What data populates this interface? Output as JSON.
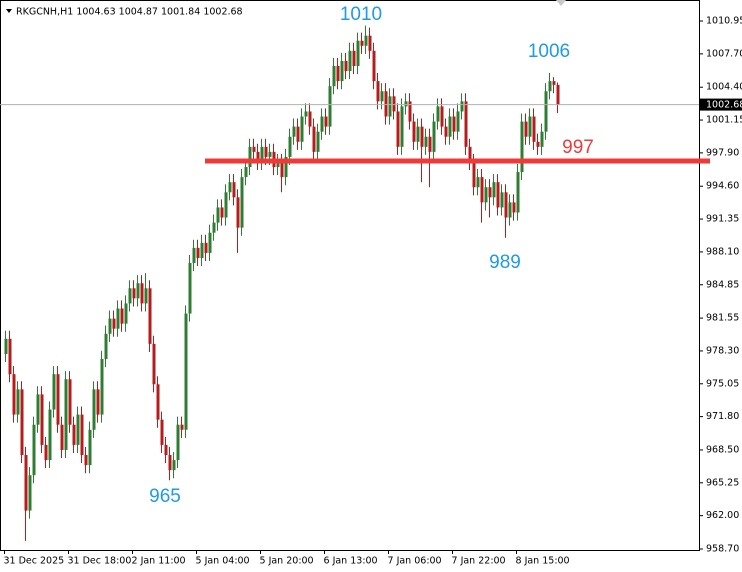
{
  "chart_data": {
    "type": "candlestick",
    "symbol": "RKGCNH,H1",
    "up_color": "#2e7d32",
    "down_color": "#b71c1c",
    "ylim": [
      958.6,
      1013.03
    ],
    "yticks": [
      1010.95,
      {
        "value": 1007.7,
        "label": "1007.70"
      },
      {
        "value": 1004.4,
        "label": "1004.40"
      },
      1001.15,
      {
        "value": 997.9,
        "label": "997.90"
      },
      {
        "value": 994.6,
        "label": "994.60"
      },
      991.35,
      {
        "value": 988.1,
        "label": "988.10"
      },
      984.85,
      981.55,
      {
        "value": 978.3,
        "label": "978.30"
      },
      975.05,
      {
        "value": 971.8,
        "label": "971.80"
      },
      {
        "value": 968.5,
        "label": "968.50"
      },
      965.25,
      {
        "value": 962.0,
        "label": "962.00"
      },
      {
        "value": 958.7,
        "label": "958.70"
      }
    ],
    "categories": [
      "31 Dec 2025",
      null,
      null,
      null,
      null,
      null,
      null,
      null,
      null,
      null,
      null,
      null,
      null,
      null,
      null,
      null,
      "31 Dec 18:00",
      null,
      null,
      null,
      null,
      null,
      null,
      null,
      null,
      null,
      null,
      null,
      null,
      null,
      null,
      null,
      "2 Jan 11:00",
      null,
      null,
      null,
      null,
      null,
      null,
      null,
      null,
      null,
      null,
      null,
      null,
      null,
      null,
      null,
      "5 Jan 04:00",
      null,
      null,
      null,
      null,
      null,
      null,
      null,
      null,
      null,
      null,
      null,
      null,
      null,
      null,
      null,
      "5 Jan 20:00",
      null,
      null,
      null,
      null,
      null,
      null,
      null,
      null,
      null,
      null,
      null,
      null,
      null,
      null,
      null,
      "6 Jan 13:00",
      null,
      null,
      null,
      null,
      null,
      null,
      null,
      null,
      null,
      null,
      null,
      null,
      null,
      null,
      null,
      "7 Jan 06:00",
      null,
      null,
      null,
      null,
      null,
      null,
      null,
      null,
      null,
      null,
      null,
      null,
      null,
      null,
      null,
      "7 Jan 22:00",
      null,
      null,
      null,
      null,
      null,
      null,
      null,
      null,
      null,
      null,
      null,
      null,
      null,
      null,
      null,
      "8 Jan 15:00",
      null,
      null,
      null,
      null,
      null,
      null,
      null,
      null,
      null,
      null
    ],
    "open": [
      978.0,
      979.5,
      976.0,
      972.0,
      974.5,
      968.0,
      962.5,
      966.0,
      971.0,
      974.0,
      969.0,
      967.5,
      972.5,
      976.0,
      971.0,
      968.5,
      975.5,
      971.0,
      969.0,
      972.0,
      968.0,
      967.0,
      970.5,
      974.5,
      972.0,
      977.5,
      980.0,
      981.5,
      980.5,
      982.5,
      981.0,
      983.0,
      984.5,
      983.5,
      985.0,
      983.0,
      984.5,
      979.0,
      975.0,
      971.5,
      969.0,
      968.0,
      966.5,
      967.5,
      971.0,
      970.5,
      982.0,
      987.0,
      988.5,
      987.5,
      989.0,
      988.0,
      990.0,
      991.0,
      992.5,
      991.5,
      994.0,
      995.0,
      993.5,
      990.5,
      995.5,
      996.5,
      998.5,
      998.0,
      997.0,
      998.5,
      997.5,
      998.0,
      996.5,
      997.0,
      995.5,
      997.5,
      999.5,
      1000.5,
      999.0,
      1001.5,
      1002.0,
      1000.5,
      998.0,
      1000.0,
      1001.5,
      1000.5,
      1004.5,
      1006.5,
      1005.0,
      1007.0,
      1006.0,
      1008.0,
      1006.5,
      1009.0,
      1008.5,
      1009.5,
      1008.0,
      1005.0,
      1003.0,
      1004.0,
      1001.5,
      1003.5,
      1002.0,
      998.5,
      1002.5,
      1003.0,
      1001.0,
      999.0,
      1000.5,
      998.5,
      999.5,
      998.0,
      1001.0,
      1002.5,
      1000.5,
      999.5,
      1001.5,
      1000.0,
      1002.0,
      1003.0,
      998.5,
      997.0,
      994.5,
      995.5,
      993.0,
      994.5,
      993.5,
      995.0,
      992.5,
      994.0,
      991.5,
      993.0,
      992.0,
      996.0,
      1001.0,
      999.5,
      1001.5,
      999.0,
      998.5,
      1000.0,
      1004.0,
      1005.0,
      1004.63
    ],
    "high": [
      980.3,
      980.3,
      976.8,
      975.3,
      975.3,
      968.8,
      966.8,
      971.8,
      974.8,
      974.8,
      969.8,
      973.3,
      976.8,
      976.8,
      971.8,
      976.3,
      976.3,
      971.8,
      972.8,
      972.8,
      968.8,
      971.3,
      975.3,
      975.3,
      978.3,
      980.8,
      982.3,
      982.3,
      983.3,
      983.3,
      983.8,
      985.3,
      985.3,
      985.8,
      985.8,
      986.0,
      985.3,
      979.8,
      975.8,
      972.3,
      969.8,
      968.8,
      968.3,
      971.8,
      971.8,
      982.8,
      987.8,
      989.3,
      989.3,
      989.8,
      989.8,
      990.8,
      991.8,
      993.3,
      993.3,
      994.8,
      995.8,
      995.8,
      994.3,
      996.3,
      997.3,
      999.3,
      999.3,
      998.8,
      999.3,
      999.3,
      998.8,
      998.8,
      997.8,
      997.8,
      998.3,
      1000.3,
      1001.3,
      1001.3,
      1002.3,
      1002.8,
      1002.8,
      1001.3,
      1000.8,
      1002.3,
      1002.3,
      1005.3,
      1007.3,
      1007.3,
      1007.8,
      1007.8,
      1008.8,
      1008.8,
      1009.8,
      1009.8,
      1010.5,
      1010.3,
      1008.8,
      1005.8,
      1004.8,
      1004.8,
      1004.3,
      1004.3,
      1002.8,
      1003.3,
      1003.8,
      1003.8,
      1001.8,
      1001.3,
      1001.3,
      1000.3,
      1000.3,
      1001.8,
      1003.3,
      1003.3,
      1001.3,
      1002.3,
      1002.3,
      1002.8,
      1003.8,
      1003.8,
      999.3,
      997.8,
      996.3,
      996.3,
      995.3,
      995.3,
      995.8,
      995.8,
      994.8,
      994.8,
      993.8,
      993.8,
      996.8,
      1001.8,
      1001.8,
      1002.3,
      1002.3,
      999.8,
      1000.8,
      1004.8,
      1005.8,
      1005.4,
      1004.87
    ],
    "low": [
      977.2,
      975.2,
      971.2,
      971.2,
      967.2,
      959.5,
      961.7,
      965.2,
      970.2,
      968.2,
      966.7,
      966.7,
      971.7,
      970.2,
      967.7,
      967.7,
      970.2,
      968.2,
      968.2,
      967.2,
      966.2,
      966.2,
      969.7,
      971.2,
      971.2,
      976.7,
      979.2,
      979.7,
      979.7,
      980.2,
      980.2,
      982.2,
      982.7,
      982.7,
      982.2,
      982.2,
      978.2,
      974.2,
      970.7,
      968.2,
      967.2,
      965.5,
      965.7,
      966.7,
      969.7,
      969.7,
      981.2,
      986.2,
      986.7,
      986.7,
      987.2,
      987.2,
      989.2,
      990.2,
      990.7,
      990.7,
      993.2,
      992.7,
      988.0,
      989.7,
      994.7,
      995.7,
      997.2,
      996.2,
      996.2,
      996.7,
      996.7,
      995.7,
      995.7,
      994.0,
      994.7,
      996.7,
      998.7,
      998.2,
      998.2,
      1000.7,
      999.7,
      997.2,
      997.2,
      999.2,
      999.7,
      999.7,
      1003.7,
      1004.2,
      1004.2,
      1005.2,
      1005.2,
      1005.7,
      1005.7,
      1007.7,
      1007.7,
      1007.2,
      1004.2,
      1002.2,
      1002.2,
      1000.7,
      1000.7,
      1001.2,
      997.7,
      997.7,
      1001.7,
      1000.2,
      998.2,
      998.2,
      995.0,
      997.7,
      994.5,
      997.2,
      1000.2,
      999.7,
      998.7,
      998.7,
      999.2,
      999.2,
      1001.2,
      997.7,
      996.2,
      993.7,
      993.7,
      991.0,
      992.2,
      991.5,
      992.7,
      991.7,
      991.7,
      989.5,
      990.7,
      991.2,
      991.2,
      995.2,
      998.7,
      998.7,
      998.2,
      997.7,
      997.7,
      999.2,
      1003.2,
      1003.8,
      1001.84
    ],
    "close": [
      979.5,
      976.0,
      972.0,
      974.5,
      968.0,
      962.5,
      966.0,
      971.0,
      974.0,
      969.0,
      967.5,
      972.5,
      976.0,
      971.0,
      968.5,
      975.5,
      971.0,
      969.0,
      972.0,
      968.0,
      967.0,
      970.5,
      974.5,
      972.0,
      977.5,
      980.0,
      981.5,
      980.5,
      982.5,
      981.0,
      983.0,
      984.5,
      983.5,
      985.0,
      983.0,
      984.5,
      979.0,
      975.0,
      971.5,
      969.0,
      968.0,
      966.5,
      967.5,
      971.0,
      970.5,
      982.0,
      987.0,
      988.5,
      987.5,
      989.0,
      988.0,
      990.0,
      991.0,
      992.5,
      991.5,
      994.0,
      995.0,
      993.5,
      990.5,
      995.5,
      996.5,
      998.5,
      998.0,
      997.0,
      998.5,
      997.5,
      998.0,
      996.5,
      997.0,
      995.5,
      997.5,
      999.5,
      1000.5,
      999.0,
      1001.5,
      1002.0,
      1000.5,
      998.0,
      1000.0,
      1001.5,
      1000.5,
      1004.5,
      1006.5,
      1005.0,
      1007.0,
      1006.0,
      1008.0,
      1006.5,
      1009.0,
      1008.5,
      1009.5,
      1008.0,
      1005.0,
      1003.0,
      1004.0,
      1001.5,
      1003.5,
      1002.0,
      998.5,
      1002.5,
      1003.0,
      1001.0,
      999.0,
      1000.5,
      998.5,
      999.5,
      998.0,
      1001.0,
      1002.5,
      1000.5,
      999.5,
      1001.5,
      1000.0,
      1002.0,
      1003.0,
      998.5,
      997.0,
      994.5,
      995.5,
      993.0,
      994.5,
      993.5,
      995.0,
      992.5,
      994.0,
      991.5,
      993.0,
      992.0,
      996.0,
      1001.0,
      999.5,
      1001.5,
      999.0,
      998.5,
      1000.0,
      1004.0,
      1005.0,
      1004.63,
      1002.68
    ],
    "hline": {
      "value": 997.1,
      "color": "#f03a3a"
    },
    "annotations": [
      {
        "text": "1010",
        "color": "#1e9be6"
      },
      {
        "text": "1006",
        "color": "#1e9be6"
      },
      {
        "text": "965",
        "color": "#1e9be6"
      },
      {
        "text": "989",
        "color": "#1e9be6"
      },
      {
        "text": "997",
        "color": "#f03a3a"
      }
    ]
  }
}
